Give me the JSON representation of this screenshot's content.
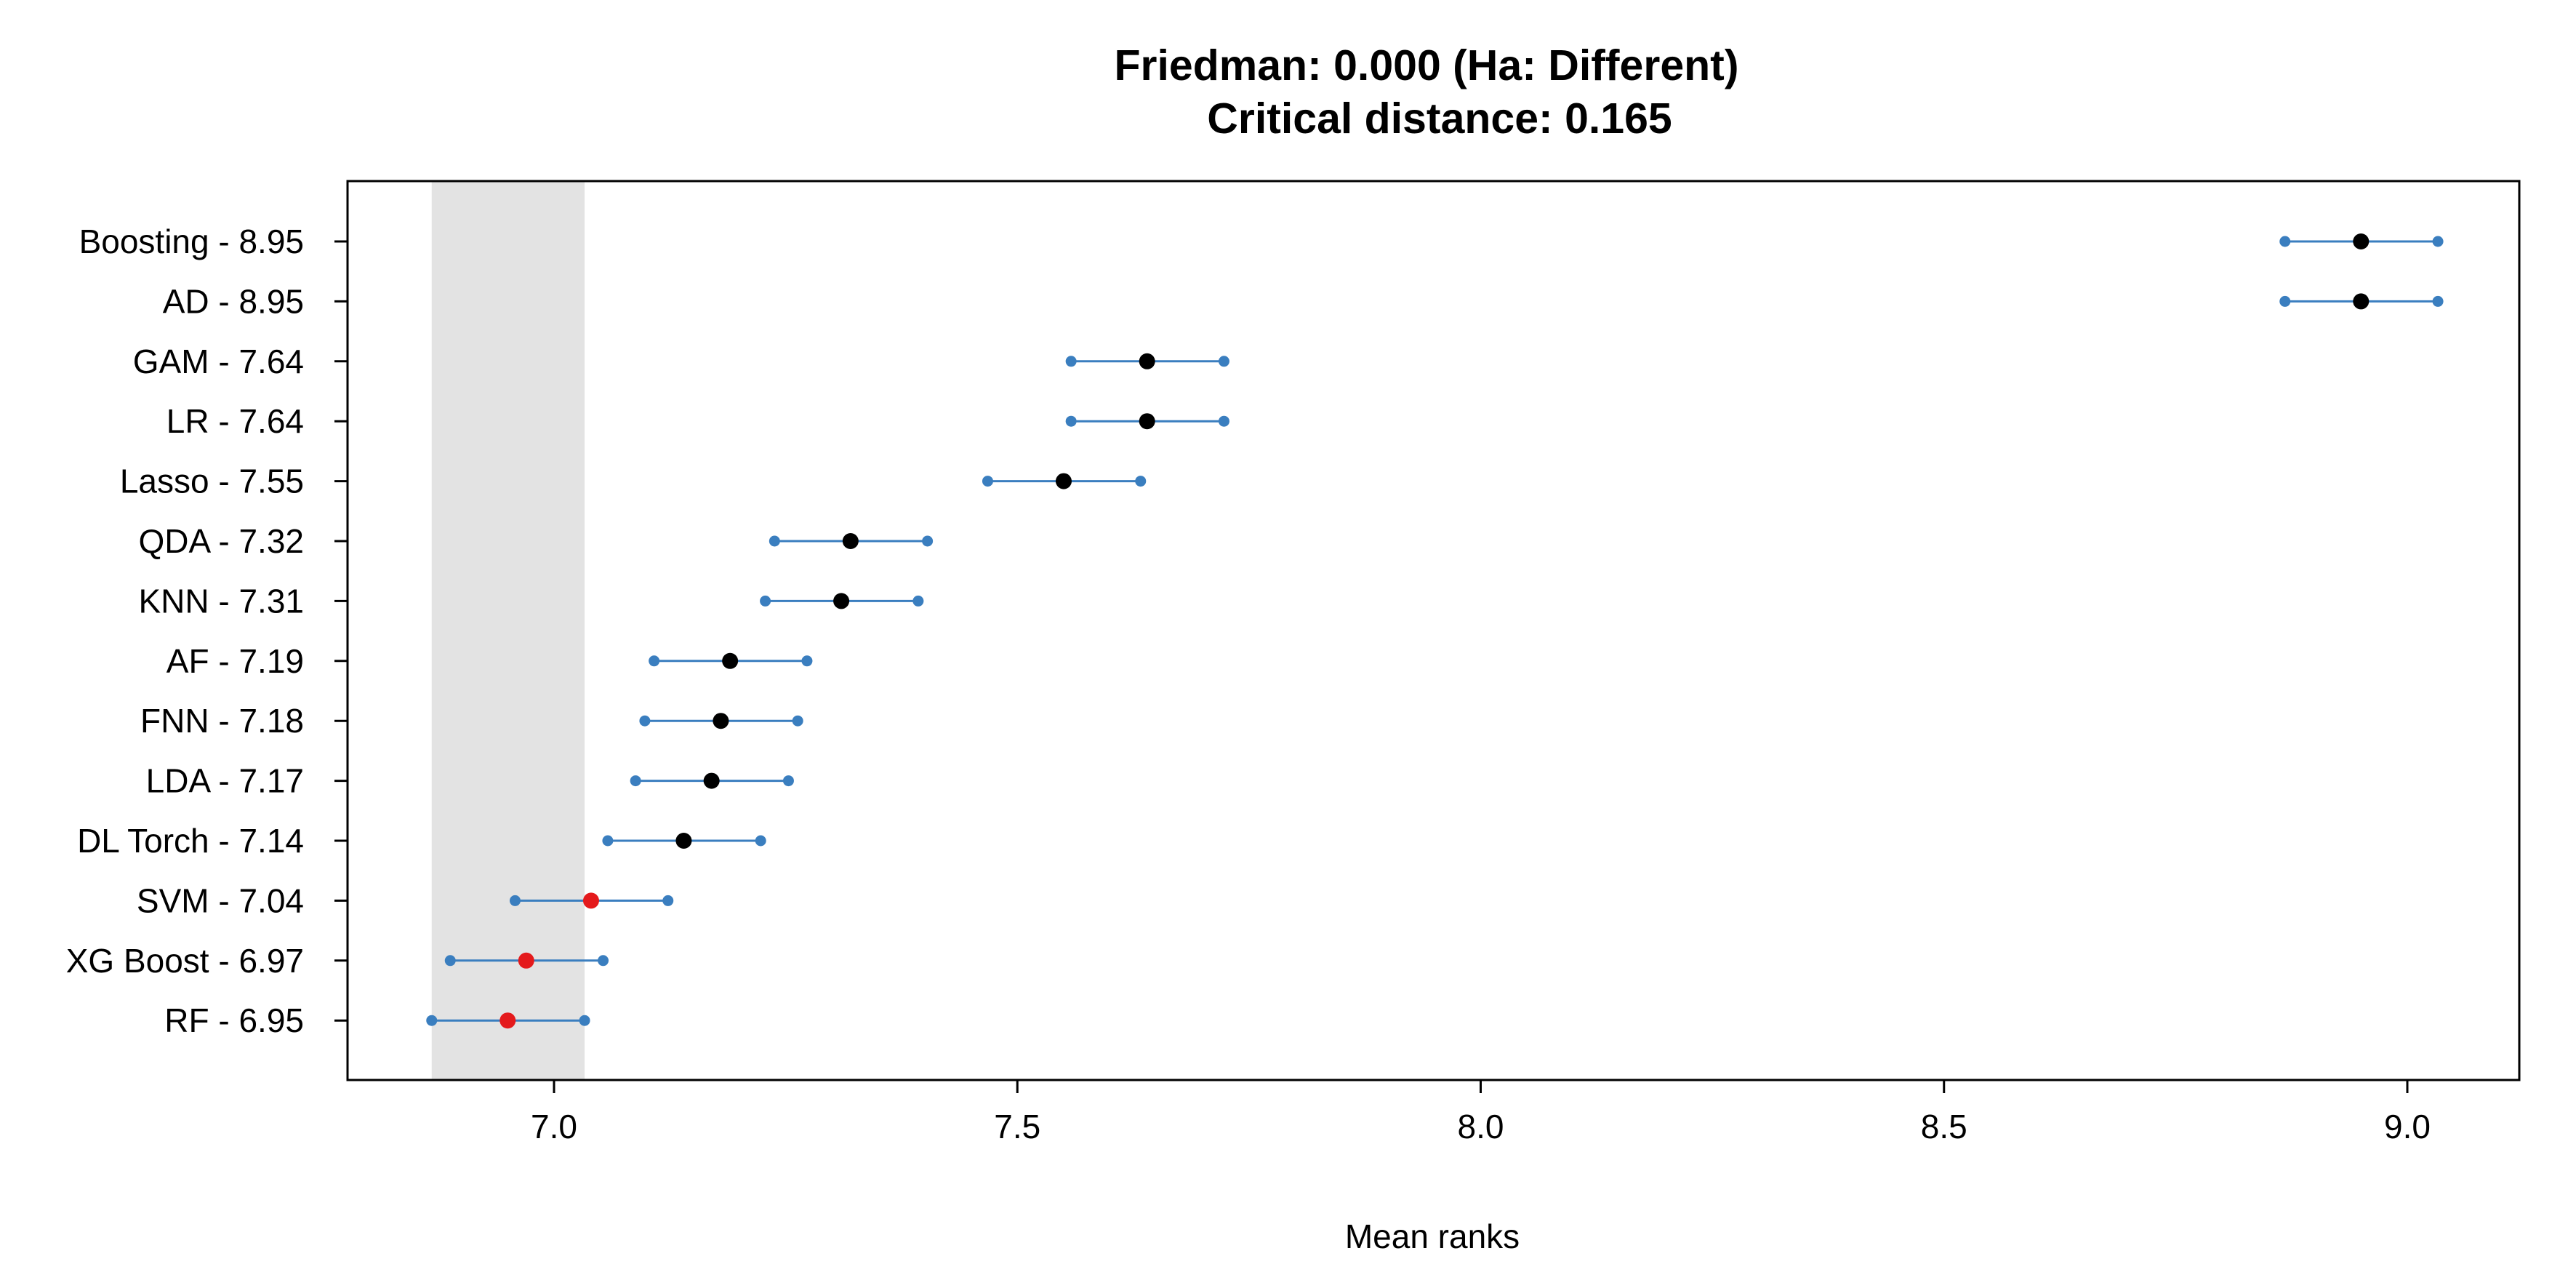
{
  "chart_data": {
    "type": "scatter",
    "title": "Friedman: 0.000 (Ha: Different)",
    "subtitle": "Critical distance: 0.165",
    "xlabel": "Mean ranks",
    "ylabel": "",
    "xlim": [
      6.78,
      9.12
    ],
    "xticks": [
      7.0,
      7.5,
      8.0,
      8.5,
      9.0
    ],
    "xtick_labels": [
      "7.0",
      "7.5",
      "8.0",
      "8.5",
      "9.0"
    ],
    "critical_distance": 0.165,
    "shaded_band": {
      "xmin": 6.868,
      "xmax": 7.033,
      "color": "#e3e3e3"
    },
    "colors": {
      "interval": "#3a7ebf",
      "mean_default": "#000000",
      "mean_best_group": "#e41a1c"
    },
    "series": [
      {
        "label": "Boosting - 8.95",
        "mean": 8.95,
        "low": 8.868,
        "high": 9.033,
        "highlight": false
      },
      {
        "label": "AD - 8.95",
        "mean": 8.95,
        "low": 8.868,
        "high": 9.033,
        "highlight": false
      },
      {
        "label": "GAM - 7.64",
        "mean": 7.64,
        "low": 7.558,
        "high": 7.723,
        "highlight": false
      },
      {
        "label": "LR - 7.64",
        "mean": 7.64,
        "low": 7.558,
        "high": 7.723,
        "highlight": false
      },
      {
        "label": "Lasso - 7.55",
        "mean": 7.55,
        "low": 7.468,
        "high": 7.633,
        "highlight": false
      },
      {
        "label": "QDA - 7.32",
        "mean": 7.32,
        "low": 7.238,
        "high": 7.403,
        "highlight": false
      },
      {
        "label": "KNN - 7.31",
        "mean": 7.31,
        "low": 7.228,
        "high": 7.393,
        "highlight": false
      },
      {
        "label": "AF - 7.19",
        "mean": 7.19,
        "low": 7.108,
        "high": 7.273,
        "highlight": false
      },
      {
        "label": "FNN - 7.18",
        "mean": 7.18,
        "low": 7.098,
        "high": 7.263,
        "highlight": false
      },
      {
        "label": "LDA - 7.17",
        "mean": 7.17,
        "low": 7.088,
        "high": 7.253,
        "highlight": false
      },
      {
        "label": "DL Torch - 7.14",
        "mean": 7.14,
        "low": 7.058,
        "high": 7.223,
        "highlight": false
      },
      {
        "label": "SVM - 7.04",
        "mean": 7.04,
        "low": 6.958,
        "high": 7.123,
        "highlight": true
      },
      {
        "label": "XG Boost - 6.97",
        "mean": 6.97,
        "low": 6.888,
        "high": 7.053,
        "highlight": true
      },
      {
        "label": "RF - 6.95",
        "mean": 6.95,
        "low": 6.868,
        "high": 7.033,
        "highlight": true
      }
    ]
  }
}
